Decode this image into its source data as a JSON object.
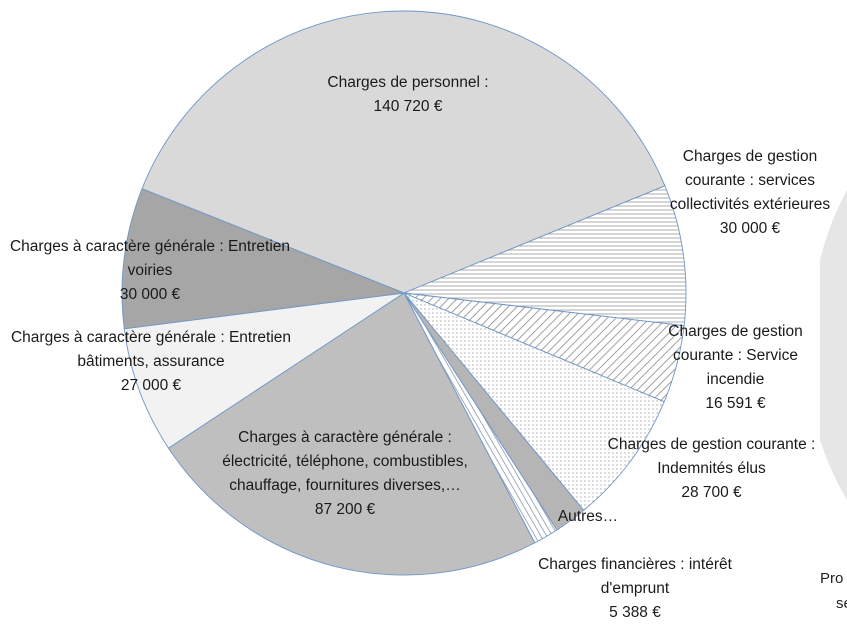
{
  "chart_data": {
    "type": "pie",
    "categories": [
      "Charges de personnel :",
      "Charges de gestion courante : services collectivités extérieures",
      "Charges de gestion courante : Service incendie",
      "Charges de gestion courante : Indemnités élus",
      "Autres…",
      "Charges financières : intérêt d'emprunt",
      "Charges à caractère générale : électricité, téléphone, combustibles, chauffage, fournitures diverses,…",
      "Charges à caractère générale : Entretien bâtiments, assurance",
      "Charges à caractère générale : Entretien voiries"
    ],
    "values": [
      140720,
      30000,
      16591,
      28700,
      7000,
      5388,
      87200,
      27000,
      30000
    ],
    "value_labels": [
      "140 720 €",
      "30 000 €",
      "16 591 €",
      "28 700 €",
      null,
      "5 388 €",
      "87 200 €",
      "27 000 €",
      "30 000 €"
    ],
    "colors": [
      "#d9d9d9",
      "hatch-h",
      "hatch-d",
      "dots",
      "#b5b5b5",
      "hatch-d2",
      "#bfbfbf",
      "#f2f2f2",
      "#a6a6a6"
    ],
    "clipped_texts": [
      "Pro",
      "se"
    ]
  }
}
